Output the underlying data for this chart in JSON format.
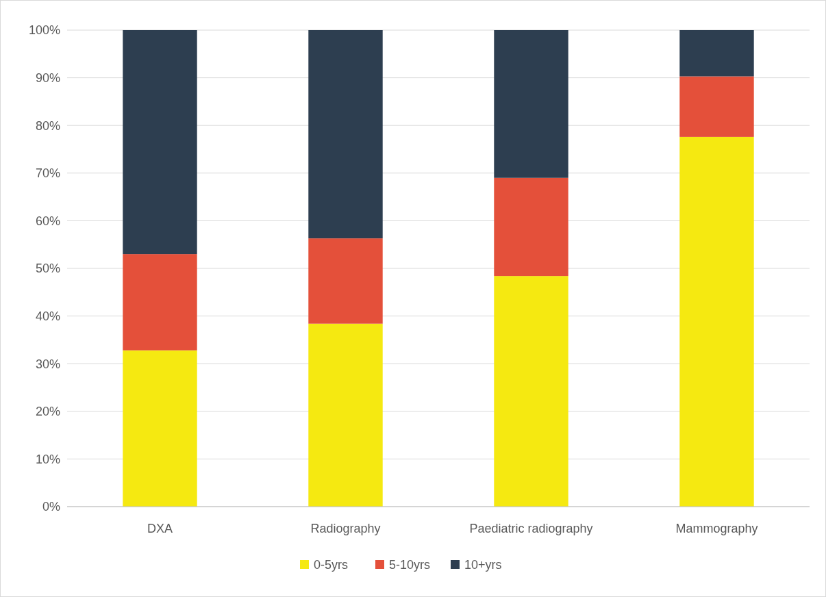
{
  "chart_data": {
    "type": "bar",
    "stacked": true,
    "categories": [
      "DXA",
      "Radiography",
      "Paediatric radiography",
      "Mammography"
    ],
    "series": [
      {
        "name": "0-5yrs",
        "color": "#f5e911",
        "values": [
          32.8,
          38.4,
          48.4,
          77.6
        ]
      },
      {
        "name": "5-10yrs",
        "color": "#e4503a",
        "values": [
          20.2,
          17.9,
          20.6,
          12.7
        ]
      },
      {
        "name": "10+yrs",
        "color": "#2d3e50",
        "values": [
          47.0,
          43.7,
          31.0,
          9.7
        ]
      }
    ],
    "ylim": [
      0,
      100
    ],
    "yticks": [
      {
        "value": 0,
        "label": "0%"
      },
      {
        "value": 10,
        "label": "10%"
      },
      {
        "value": 20,
        "label": "20%"
      },
      {
        "value": 30,
        "label": "30%"
      },
      {
        "value": 40,
        "label": "40%"
      },
      {
        "value": 50,
        "label": "50%"
      },
      {
        "value": 60,
        "label": "60%"
      },
      {
        "value": 70,
        "label": "70%"
      },
      {
        "value": 80,
        "label": "80%"
      },
      {
        "value": 90,
        "label": "90%"
      },
      {
        "value": 100,
        "label": "100%"
      }
    ],
    "grid": "y",
    "legend": "bottom"
  }
}
